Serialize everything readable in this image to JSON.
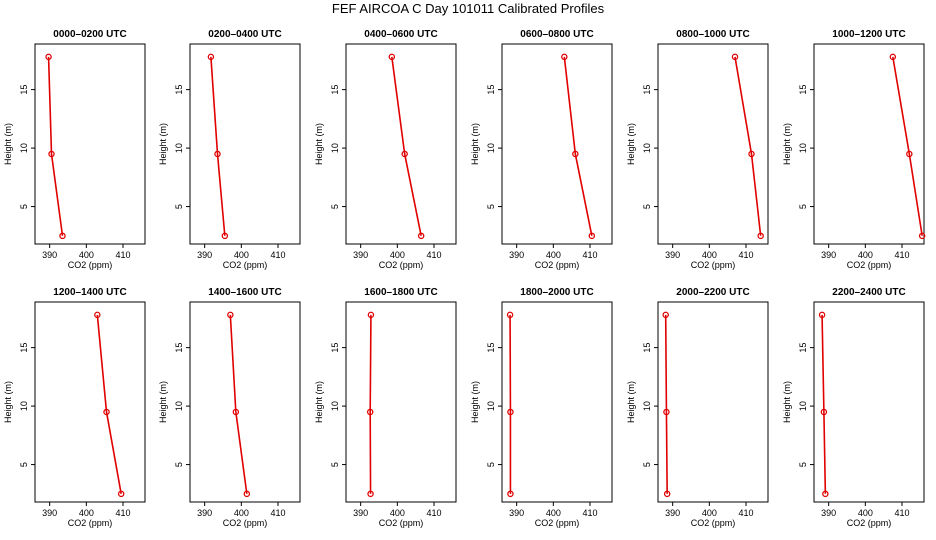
{
  "chart_data": {
    "type": "line",
    "title": "FEF AIRCOA C  Day 101011  Calibrated Profiles",
    "xlabel": "CO2 (ppm)",
    "ylabel": "Height (m)",
    "xlim": [
      386,
      416
    ],
    "ylim": [
      1.8,
      18.9
    ],
    "xticks": [
      390,
      400,
      410
    ],
    "yticks": [
      5,
      10,
      15
    ],
    "grid": false,
    "heights": [
      2.5,
      9.5,
      17.8
    ],
    "line_color": "#e00000",
    "panels": [
      {
        "title": "0000–0200 UTC",
        "co2": [
          393.5,
          390.5,
          389.7
        ]
      },
      {
        "title": "0200–0400 UTC",
        "co2": [
          395.5,
          393.5,
          391.7
        ]
      },
      {
        "title": "0400–0600 UTC",
        "co2": [
          406.5,
          402.0,
          398.5
        ]
      },
      {
        "title": "0600–0800 UTC",
        "co2": [
          410.5,
          406.0,
          403.0
        ]
      },
      {
        "title": "0800–1000 UTC",
        "co2": [
          414.0,
          411.5,
          407.0
        ]
      },
      {
        "title": "1000–1200 UTC",
        "co2": [
          415.5,
          412.0,
          407.5
        ]
      },
      {
        "title": "1200–1400 UTC",
        "co2": [
          409.5,
          405.5,
          403.0
        ]
      },
      {
        "title": "1400–1600 UTC",
        "co2": [
          401.5,
          398.5,
          397.0
        ]
      },
      {
        "title": "1600–1800 UTC",
        "co2": [
          392.7,
          392.6,
          392.8
        ]
      },
      {
        "title": "1800–2000 UTC",
        "co2": [
          388.3,
          388.3,
          388.2
        ]
      },
      {
        "title": "2000–2200 UTC",
        "co2": [
          388.5,
          388.3,
          388.1
        ]
      },
      {
        "title": "2200–2400 UTC",
        "co2": [
          389.1,
          388.7,
          388.2
        ]
      }
    ]
  }
}
